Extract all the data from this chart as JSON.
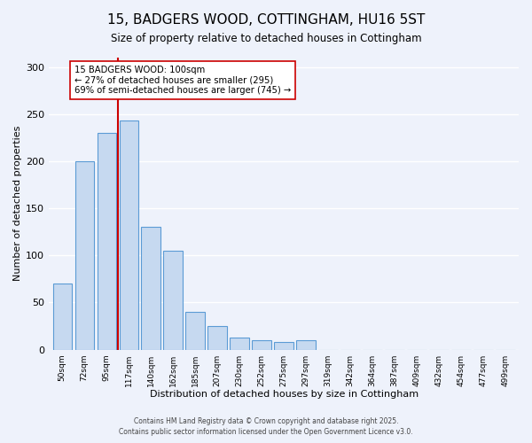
{
  "title": "15, BADGERS WOOD, COTTINGHAM, HU16 5ST",
  "subtitle": "Size of property relative to detached houses in Cottingham",
  "xlabel": "Distribution of detached houses by size in Cottingham",
  "ylabel": "Number of detached properties",
  "bar_labels": [
    "50sqm",
    "72sqm",
    "95sqm",
    "117sqm",
    "140sqm",
    "162sqm",
    "185sqm",
    "207sqm",
    "230sqm",
    "252sqm",
    "275sqm",
    "297sqm",
    "319sqm",
    "342sqm",
    "364sqm",
    "387sqm",
    "409sqm",
    "432sqm",
    "454sqm",
    "477sqm",
    "499sqm"
  ],
  "bar_values": [
    70,
    200,
    230,
    243,
    130,
    105,
    40,
    25,
    13,
    10,
    8,
    10,
    0,
    0,
    0,
    0,
    0,
    0,
    0,
    0,
    0
  ],
  "bar_color": "#c6d9f0",
  "bar_edge_color": "#5b9bd5",
  "vline_x_index": 2.5,
  "marker_label": "15 BADGERS WOOD: 100sqm",
  "annotation_line1": "← 27% of detached houses are smaller (295)",
  "annotation_line2": "69% of semi-detached houses are larger (745) →",
  "vline_color": "#cc0000",
  "annotation_box_facecolor": "#ffffff",
  "annotation_box_edgecolor": "#cc0000",
  "ylim": [
    0,
    310
  ],
  "yticks": [
    0,
    50,
    100,
    150,
    200,
    250,
    300
  ],
  "background_color": "#eef2fb",
  "grid_color": "#ffffff",
  "footer1": "Contains HM Land Registry data © Crown copyright and database right 2025.",
  "footer2": "Contains public sector information licensed under the Open Government Licence v3.0."
}
